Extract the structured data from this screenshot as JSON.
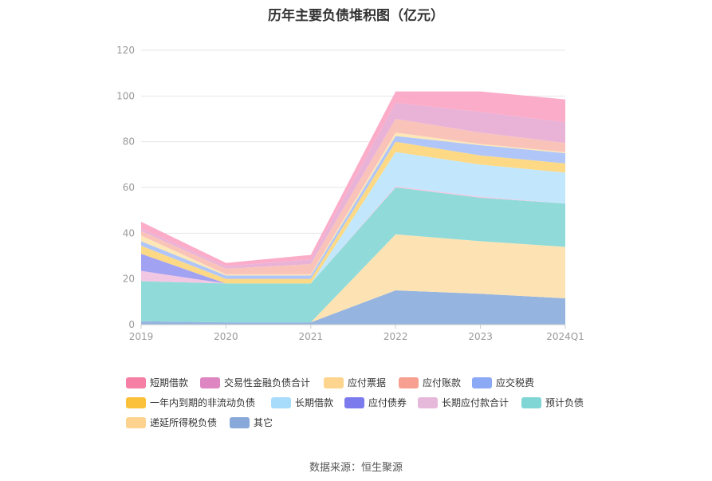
{
  "chart_data": {
    "type": "area",
    "stacked": true,
    "title": "历年主要负债堆积图（亿元）",
    "categories": [
      "2019",
      "2020",
      "2021",
      "2022",
      "2023",
      "2024Q1"
    ],
    "ylim": [
      0,
      120
    ],
    "yticks": [
      0,
      20,
      40,
      60,
      80,
      100,
      120
    ],
    "grid": true,
    "legend_position": "bottom",
    "series": [
      {
        "name": "其它",
        "color": "#8fb0dd",
        "values": [
          1.5,
          1.0,
          1.0,
          15.0,
          13.5,
          11.5
        ]
      },
      {
        "name": "递延所得税负债",
        "color": "#fde2b0",
        "values": [
          0.0,
          0.0,
          0.0,
          24.5,
          23.0,
          22.5
        ]
      },
      {
        "name": "预计负债",
        "color": "#8ad9d7",
        "values": [
          17.5,
          17.0,
          17.0,
          20.5,
          19.0,
          19.0
        ]
      },
      {
        "name": "长期应付款合计",
        "color": "#f0c4e2",
        "values": [
          4.5,
          0.0,
          0.0,
          0.5,
          0.5,
          0.0
        ]
      },
      {
        "name": "应付债券",
        "color": "#9d9df2",
        "values": [
          7.5,
          0.0,
          0.0,
          0.0,
          0.0,
          0.0
        ]
      },
      {
        "name": "长期借款",
        "color": "#bfe6fc",
        "values": [
          0.0,
          0.0,
          0.0,
          15.0,
          14.0,
          13.5
        ]
      },
      {
        "name": "一年内到期的非流动负债",
        "color": "#fdd77e",
        "values": [
          3.5,
          2.0,
          2.0,
          4.5,
          4.0,
          4.0
        ]
      },
      {
        "name": "应交税费",
        "color": "#acc3f8",
        "values": [
          2.0,
          1.5,
          1.5,
          2.5,
          4.5,
          4.5
        ]
      },
      {
        "name": "应付票据",
        "color": "#fde6b3",
        "values": [
          2.5,
          0.5,
          0.5,
          1.5,
          0.5,
          0.5
        ]
      },
      {
        "name": "应付账款",
        "color": "#f9c0b6",
        "values": [
          2.0,
          2.5,
          4.5,
          6.0,
          5.0,
          4.0
        ]
      },
      {
        "name": "交易性金融负债合计",
        "color": "#e8afd6",
        "values": [
          1.0,
          1.0,
          2.0,
          7.0,
          9.0,
          9.0
        ]
      },
      {
        "name": "短期借款",
        "color": "#fba8c6",
        "values": [
          3.0,
          1.5,
          2.0,
          5.0,
          9.0,
          10.0
        ]
      }
    ],
    "legend_order": [
      "短期借款",
      "交易性金融负债合计",
      "应付票据",
      "应付账款",
      "应交税费",
      "一年内到期的非流动负债",
      "长期借款",
      "应付债券",
      "长期应付款合计",
      "预计负债",
      "递延所得税负债",
      "其它"
    ],
    "legend_colors": {
      "短期借款": "#f67fa6",
      "交易性金融负债合计": "#dd86c2",
      "应付票据": "#fdd58f",
      "应付账款": "#f7a092",
      "应交税费": "#8ca9f5",
      "一年内到期的非流动负债": "#fcc13b",
      "长期借款": "#a8dcfb",
      "应付债券": "#7b7bee",
      "长期应付款合计": "#e6b8da",
      "预计负债": "#7fd6d4",
      "递延所得税负债": "#fdd38f",
      "其它": "#87a8d8"
    }
  },
  "source_text": "数据来源：恒生聚源"
}
